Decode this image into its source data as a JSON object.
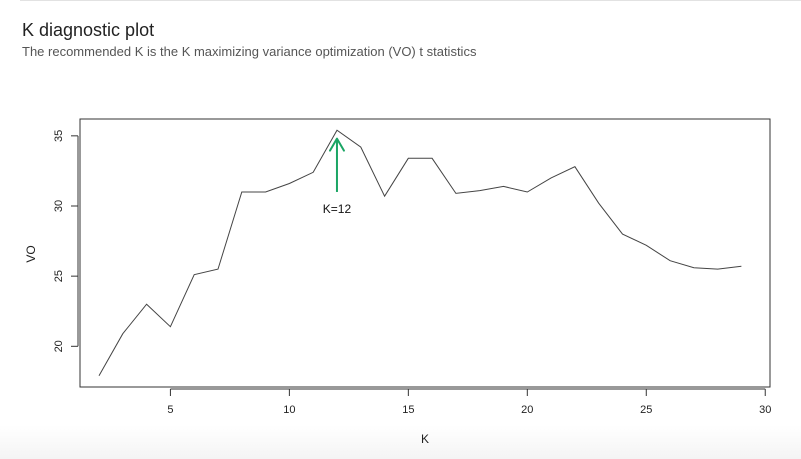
{
  "header": {
    "title": "K diagnostic plot",
    "subtitle": "The recommended K is the K maximizing variance optimization (VO) t statistics"
  },
  "chart_data": {
    "type": "line",
    "title": "",
    "xlabel": "K",
    "ylabel": "VO",
    "xlim": [
      1.2,
      30.2
    ],
    "ylim": [
      17.1,
      36.2
    ],
    "xticks": [
      5,
      10,
      15,
      20,
      25,
      30
    ],
    "yticks": [
      20,
      25,
      30,
      35
    ],
    "grid": false,
    "series": [
      {
        "x": [
          2,
          3,
          4,
          5,
          6,
          7,
          8,
          9,
          10,
          11,
          12,
          13,
          14,
          15,
          16,
          17,
          18,
          19,
          20,
          21,
          22,
          23,
          24,
          25,
          26,
          27,
          28,
          29
        ],
        "y": [
          17.9,
          20.9,
          23.0,
          21.4,
          25.1,
          25.5,
          31.0,
          31.0,
          31.6,
          32.4,
          35.4,
          34.2,
          30.7,
          33.4,
          33.4,
          30.9,
          31.1,
          31.4,
          31.0,
          32.0,
          32.8,
          30.2,
          28.0,
          27.2,
          26.1,
          25.6,
          25.5,
          25.7
        ],
        "color": "#444444"
      }
    ],
    "annotation": {
      "label": "K=12",
      "x": 12,
      "arrow_from_y": 31.0,
      "arrow_to_y": 34.8,
      "arrow_color": "#1aa564"
    }
  }
}
